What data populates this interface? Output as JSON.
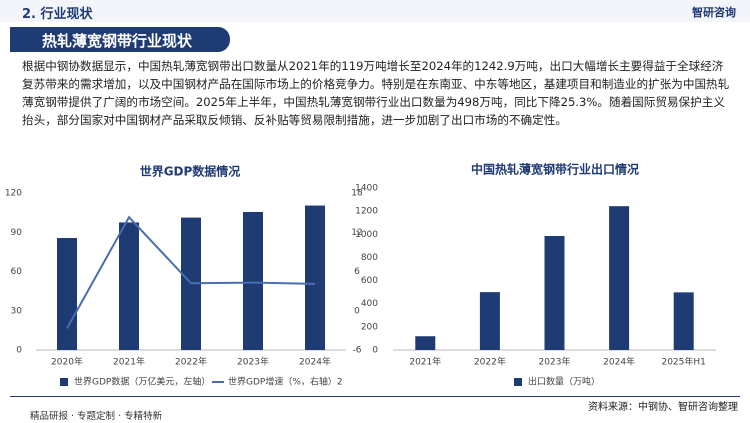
{
  "header": {
    "section": "2. 行业现状",
    "logo": "智研咨询",
    "title": "热轧薄宽钢带行业现状"
  },
  "paragraph": "根据中钢协数据显示，中国热轧薄宽钢带出口数量从2021年的119万吨增长至2024年的1242.9万吨，出口大幅增长主要得益于全球经济复苏带来的需求增加，以及中国钢材产品在国际市场上的价格竞争力。特别是在东南亚、中东等地区，基建项目和制造业的扩张为中国热轧薄宽钢带提供了广阔的市场空间。2025年上半年，中国热轧薄宽钢带行业出口数量为498万吨，同比下降25.3%。随着国际贸易保护主义抬头，部分国家对中国钢材产品采取反倾销、反补贴等贸易限制措施，进一步加剧了出口市场的不确定性。",
  "chart_data": [
    {
      "type": "bar",
      "title": "世界GDP数据情况",
      "categories": [
        "2020年",
        "2021年",
        "2022年",
        "2023年",
        "2024年"
      ],
      "series": [
        {
          "name": "世界GDP数据（万亿美元，左轴）",
          "color": "#1f3b73",
          "values": [
            85.6,
            97.5,
            101.2,
            105.5,
            110.4
          ]
        },
        {
          "name": "世界GDP增速（%，右轴）2",
          "color": "#4a6db0",
          "type": "line",
          "axis": "y2",
          "values": [
            -2.7,
            14.3,
            4.2,
            4.3,
            4.1
          ]
        }
      ],
      "ylim": [
        0,
        120
      ],
      "yticks": [
        0,
        30,
        60,
        90,
        120
      ],
      "y2lim": [
        -6,
        18
      ],
      "y2ticks": [
        -6,
        0,
        6,
        12,
        18
      ],
      "grid": false
    },
    {
      "type": "bar",
      "title": "中国热轧薄宽钢带行业出口情况",
      "categories": [
        "2021年",
        "2022年",
        "2023年",
        "2024年",
        "2025年H1"
      ],
      "series": [
        {
          "name": "出口数量（万吨）",
          "color": "#1f3b73",
          "values": [
            119,
            500,
            985,
            1242.9,
            498
          ]
        }
      ],
      "ylim": [
        0,
        1400
      ],
      "yticks": [
        0,
        200,
        400,
        600,
        800,
        1000,
        1200,
        1400
      ],
      "grid": false
    }
  ],
  "source": "资料来源：中钢协、智研咨询整理",
  "footer": "精品研报 · 专题定制 · 专精特新"
}
